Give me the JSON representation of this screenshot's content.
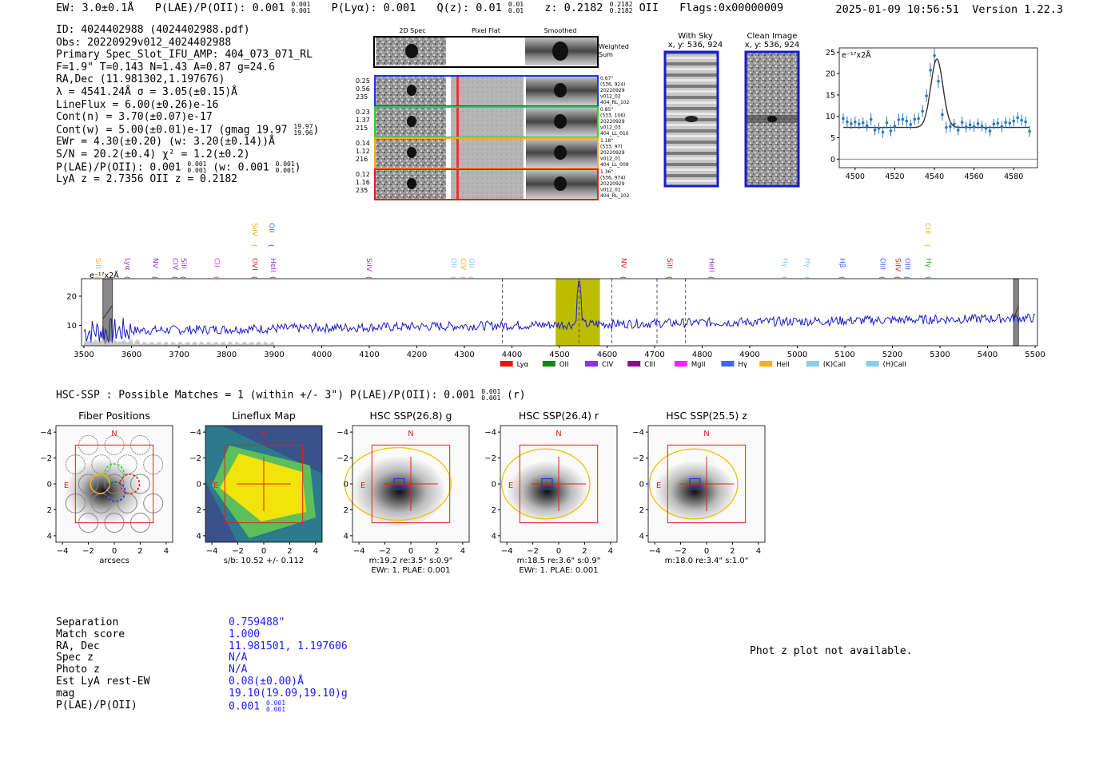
{
  "header": {
    "ew": "EW: 3.0±0.1Å",
    "plae": "P(LAE)/P(OII): 0.001",
    "plae_sup": "0.001",
    "plae_sub": "0.001",
    "plya": "P(Lyα): 0.001",
    "qz": "Q(z): 0.01",
    "qz_sup": "0.01",
    "qz_sub": "0.01",
    "z": "z: 0.2182",
    "z_sup": "0.2182",
    "z_sub": "0.2182",
    "z_line": "OII",
    "flags": "Flags:0x00000009",
    "timestamp": "2025-01-09 10:56:51",
    "version": "Version 1.22.3"
  },
  "info": {
    "lines": [
      "ID: 4024402988 (4024402988.pdf)",
      "Obs: 20220929v012_4024402988",
      "Primary Spec_Slot_IFU_AMP: 404_073_071_RL",
      "F=1.9\"  T=0.143  N=1.43  A=0.87  g=24.6",
      "RA,Dec (11.981302,1.197676)",
      "λ = 4541.24Å  σ = 3.05(±0.15)Å",
      "LineFlux = 6.00(±0.26)e-16",
      "Cont(n) = 3.70(±0.07)e-17",
      "Cont(w) = 5.00(±0.01)e-17 (gmag 19.97",
      "EWr = 4.30(±0.20) (w: 3.20(±0.14))Å",
      "S/N = 20.2(±0.4)  χ² = 1.2(±0.2)",
      "P(LAE)/P(OII): 0.001",
      "LyA z = 2.7356  OII z = 0.2182"
    ],
    "gmag_sup": "19.97",
    "gmag_sub": "19.96",
    "plae_sup": "0.001",
    "plae_sub": "0.001",
    "plae_w": "(w: 0.001",
    "plae_w_sup": "0.001",
    "plae_w_sub": "0.001"
  },
  "cutouts": {
    "col_labels": [
      "2D Spec",
      "Pixel Flat",
      "Smoothed"
    ],
    "weighted_label": "Weighted Sum",
    "rows": [
      {
        "stats": [
          "0.25",
          "0.56",
          "235"
        ],
        "meta": [
          "0.67\"",
          "(536, 924)",
          "20220929",
          "v012_02",
          "404_RL_102"
        ],
        "color": "#2233dd"
      },
      {
        "stats": [
          "0.23",
          "1.37",
          "215"
        ],
        "meta": [
          "0.85\"",
          "(533, 106)",
          "20220929",
          "v012_03",
          "404_LL_010"
        ],
        "color": "#33cc33"
      },
      {
        "stats": [
          "0.14",
          "1.12",
          "216"
        ],
        "meta": [
          "1.18\"",
          "(533, 97)",
          "20220929",
          "v012_01",
          "404_LL_009"
        ],
        "color": "#ffaa22"
      },
      {
        "stats": [
          "0.12",
          "1.16",
          "235"
        ],
        "meta": [
          "1.36\"",
          "(536, 974)",
          "20220929",
          "v012_01",
          "404_RL_102"
        ],
        "color": "#dd2222"
      }
    ],
    "with_sky_title": "With Sky",
    "with_sky_xy": "x, y: 536, 924",
    "clean_title": "Clean Image",
    "clean_xy": "x, y: 536, 924"
  },
  "zoom_chart": {
    "type": "scatter",
    "unit_label": "e⁻¹⁷x2Å",
    "xlim": [
      4492,
      4592
    ],
    "ylim": [
      -2,
      26
    ],
    "xticks": [
      4500,
      4520,
      4540,
      4560,
      4580
    ],
    "yticks": [
      0,
      5,
      10,
      15,
      20,
      25
    ],
    "x": [
      4494,
      4496,
      4498,
      4500,
      4502,
      4504,
      4506,
      4508,
      4510,
      4512,
      4514,
      4516,
      4518,
      4520,
      4522,
      4524,
      4526,
      4528,
      4530,
      4532,
      4534,
      4536,
      4538,
      4540,
      4542,
      4544,
      4546,
      4548,
      4550,
      4552,
      4554,
      4556,
      4558,
      4560,
      4562,
      4564,
      4566,
      4568,
      4570,
      4572,
      4574,
      4576,
      4578,
      4580,
      4582,
      4584,
      4586,
      4588
    ],
    "y": [
      9.5,
      8.7,
      8.3,
      8.7,
      8.2,
      8.5,
      7.8,
      9.3,
      6.8,
      7.2,
      6.3,
      8.5,
      6.6,
      7.7,
      9.2,
      9.3,
      8.9,
      8.1,
      9.3,
      9.5,
      11.2,
      14.8,
      20.8,
      24.2,
      18.2,
      10.4,
      7.4,
      7.6,
      8.2,
      6.8,
      8.6,
      7.5,
      8.0,
      7.6,
      8.3,
      7.7,
      7.2,
      6.6,
      8.2,
      8.4,
      7.6,
      8.6,
      8.4,
      8.9,
      9.7,
      9.1,
      8.7,
      6.5
    ],
    "yerr": [
      1.2,
      1.3,
      1.3,
      1.3,
      1.2,
      1.2,
      1.3,
      1.4,
      1.2,
      1.3,
      1.3,
      1.4,
      1.3,
      1.3,
      1.4,
      1.4,
      1.3,
      1.2,
      1.3,
      1.3,
      1.4,
      1.5,
      1.6,
      1.6,
      1.5,
      1.4,
      1.3,
      1.3,
      1.2,
      1.2,
      1.3,
      1.2,
      1.3,
      1.2,
      1.2,
      1.2,
      1.2,
      1.3,
      1.2,
      1.2,
      1.3,
      1.2,
      1.2,
      1.3,
      1.3,
      1.3,
      1.2,
      1.3
    ],
    "fit": {
      "center": 4541.24,
      "sigma": 3.05,
      "amp": 16.0,
      "cont": 7.4
    }
  },
  "spectrum_chart": {
    "type": "line",
    "unit_label": "e⁻¹⁷x2Å",
    "xlim": [
      3495,
      5505
    ],
    "ylim": [
      3,
      26
    ],
    "xticks": [
      3500,
      3600,
      3700,
      3800,
      3900,
      4000,
      4100,
      4200,
      4300,
      4400,
      4500,
      4600,
      4700,
      4800,
      4900,
      5000,
      5100,
      5200,
      5300,
      5400,
      5500
    ],
    "yticks": [
      10,
      20
    ],
    "highlight_range": [
      4492,
      4585
    ],
    "emission_peak": 4541.24,
    "dashed_lines": [
      4380,
      4541,
      4610,
      4705,
      4765
    ],
    "masked_ranges": [
      [
        3540,
        3560
      ],
      [
        5455,
        5465
      ]
    ],
    "line_labels": [
      {
        "name": "SiII",
        "x": 3520,
        "color": "#ffaa22",
        "level": 0
      },
      {
        "name": "Lyα",
        "x": 3582,
        "color": "#9933cc",
        "level": 0
      },
      {
        "name": "NV",
        "x": 3640,
        "color": "#9933cc",
        "level": 0
      },
      {
        "name": "CIV",
        "x": 3682,
        "color": "#9933cc",
        "level": 0
      },
      {
        "name": "SiII",
        "x": 3700,
        "color": "#9933cc",
        "level": 0
      },
      {
        "name": "CII",
        "x": 3770,
        "color": "#ff33ff",
        "level": 0
      },
      {
        "name": "OVI",
        "x": 3850,
        "color": "#dd2222",
        "level": 0
      },
      {
        "name": "SiIV",
        "x": 3850,
        "color": "#ffaa22",
        "level": 1
      },
      {
        "name": "OII",
        "x": 3885,
        "color": "#4466ff",
        "level": 1
      },
      {
        "name": "HeII",
        "x": 3888,
        "color": "#9933cc",
        "level": 0
      },
      {
        "name": "SiIV",
        "x": 4090,
        "color": "#9933cc",
        "level": 0
      },
      {
        "name": "OII",
        "x": 4268,
        "color": "#88ccee",
        "level": 0
      },
      {
        "name": "CIV",
        "x": 4288,
        "color": "#ffaa22",
        "level": 0
      },
      {
        "name": "OII",
        "x": 4305,
        "color": "#88ccee",
        "level": 0
      },
      {
        "name": "NV",
        "x": 4625,
        "color": "#dd2222",
        "level": 0
      },
      {
        "name": "SiII",
        "x": 4722,
        "color": "#dd2222",
        "level": 0
      },
      {
        "name": "HeII",
        "x": 4810,
        "color": "#9933cc",
        "level": 0
      },
      {
        "name": "Hγ",
        "x": 4965,
        "color": "#88ccee",
        "level": 0
      },
      {
        "name": "Hγ",
        "x": 5012,
        "color": "#88ccee",
        "level": 0
      },
      {
        "name": "Hβ",
        "x": 5085,
        "color": "#4466ff",
        "level": 0
      },
      {
        "name": "OIII",
        "x": 5170,
        "color": "#4466ff",
        "level": 0
      },
      {
        "name": "SiIV",
        "x": 5202,
        "color": "#dd2222",
        "level": 0
      },
      {
        "name": "OIII",
        "x": 5222,
        "color": "#4466ff",
        "level": 0
      },
      {
        "name": "CIII",
        "x": 5265,
        "color": "#ffaa22",
        "level": 1
      },
      {
        "name": "Hγ",
        "x": 5266,
        "color": "#33aa33",
        "level": 0
      }
    ],
    "legend": [
      {
        "name": "Lyα",
        "color": "#ee1111"
      },
      {
        "name": "OII",
        "color": "#118811"
      },
      {
        "name": "CIV",
        "color": "#8833ee"
      },
      {
        "name": "CIII",
        "color": "#881188"
      },
      {
        "name": "MgII",
        "color": "#ff22ff"
      },
      {
        "name": "Hγ",
        "color": "#4466ee"
      },
      {
        "name": "HeII",
        "color": "#ffaa22"
      },
      {
        "name": "(K)CaII",
        "color": "#88ccee"
      },
      {
        "name": "(H)CaII",
        "color": "#88ccee"
      }
    ]
  },
  "hsc_line": {
    "text": "HSC-SSP : Possible Matches = 1 (within +/- 3\")  P(LAE)/P(OII): 0.001",
    "sup": "0.001",
    "sub": "0.001",
    "suffix": "(r)"
  },
  "stamps": [
    {
      "title": "Fiber Positions",
      "caption1": "arcsecs",
      "caption2": ""
    },
    {
      "title": "Lineflux Map",
      "caption1": "s/b: 10.52 +/- 0.112",
      "caption2": ""
    },
    {
      "title": "HSC SSP(26.8) g",
      "caption1": "m:19.2  re:3.5\"  s:0.9\"",
      "caption2": "EWr: 1. PLAE: 0.001"
    },
    {
      "title": "HSC SSP(26.4) r",
      "caption1": "m:18.5  re:3.6\"  s:0.9\"",
      "caption2": "EWr: 1. PLAE: 0.001"
    },
    {
      "title": "HSC SSP(25.5) z",
      "caption1": "m:18.0  re:3.4\"  s:1.0\"",
      "caption2": ""
    }
  ],
  "stamp_axis": {
    "ticks": [
      "−4",
      "−2",
      "0",
      "2",
      "4"
    ],
    "north": "N",
    "east": "E"
  },
  "bottom": {
    "rows": [
      {
        "key": "Separation",
        "value": "0.759488\""
      },
      {
        "key": "Match score",
        "value": "1.000"
      },
      {
        "key": "RA, Dec",
        "value": "11.981501, 1.197606"
      },
      {
        "key": "Spec z",
        "value": "N/A"
      },
      {
        "key": "Photo z",
        "value": "N/A"
      },
      {
        "key": "Est LyA rest-EW",
        "value": "0.08(±0.00)Å"
      },
      {
        "key": "mag",
        "value": "19.10(19.09,19.10)g"
      },
      {
        "key": "P(LAE)/P(OII)",
        "value": "0.001"
      }
    ],
    "plae_sup": "0.001",
    "plae_sub": "0.001",
    "photz_note": "Phot z plot not available."
  }
}
